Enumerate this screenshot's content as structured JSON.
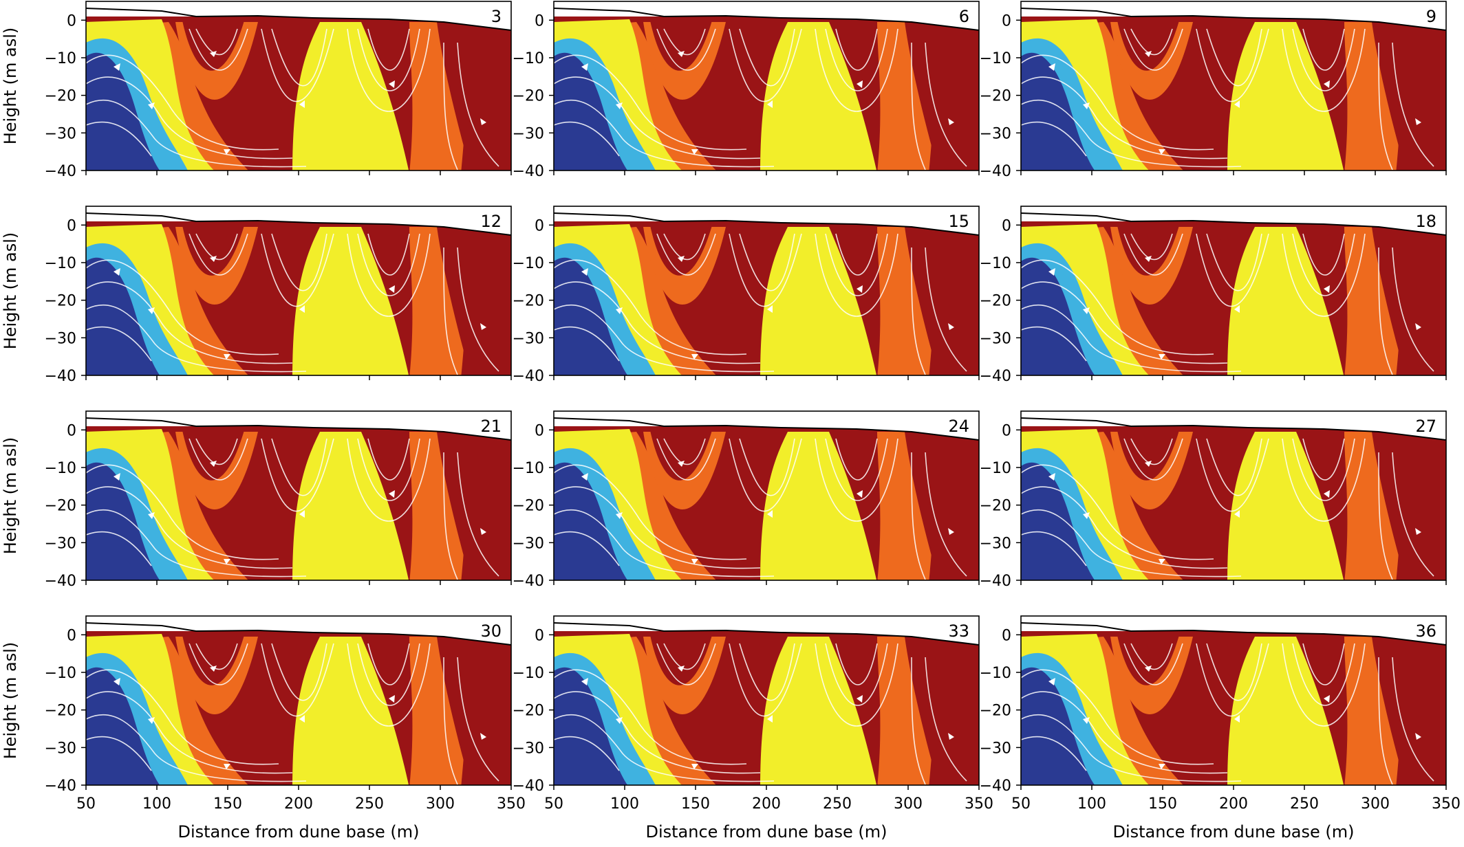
{
  "figure": {
    "x_axis_label": "Distance from dune base (m)",
    "y_axis_label": "Height (m asl)",
    "x_ticks": [
      "50",
      "100",
      "150",
      "200",
      "250",
      "300",
      "350"
    ],
    "y_ticks": [
      "0",
      "−10",
      "−20",
      "−30",
      "−40"
    ],
    "colors": {
      "low": "#2a3a92",
      "mid_low": "#3fb2e0",
      "mid": "#f2ee2a",
      "mid_high": "#ee6a1e",
      "high": "#9a1416",
      "streamline": "#ffffff",
      "surface_line": "#000000"
    }
  },
  "chart_data": [
    {
      "type": "heatmap",
      "panel_label": "3",
      "xlim": [
        50,
        350
      ],
      "ylim": [
        -40,
        5
      ],
      "xlabel": "",
      "ylabel": "Height (m asl)",
      "overlay": "streamlines"
    },
    {
      "type": "heatmap",
      "panel_label": "6",
      "xlim": [
        50,
        350
      ],
      "ylim": [
        -40,
        5
      ],
      "xlabel": "",
      "ylabel": "",
      "overlay": "streamlines"
    },
    {
      "type": "heatmap",
      "panel_label": "9",
      "xlim": [
        50,
        350
      ],
      "ylim": [
        -40,
        5
      ],
      "xlabel": "",
      "ylabel": "",
      "overlay": "streamlines"
    },
    {
      "type": "heatmap",
      "panel_label": "12",
      "xlim": [
        50,
        350
      ],
      "ylim": [
        -40,
        5
      ],
      "xlabel": "",
      "ylabel": "Height (m asl)",
      "overlay": "streamlines"
    },
    {
      "type": "heatmap",
      "panel_label": "15",
      "xlim": [
        50,
        350
      ],
      "ylim": [
        -40,
        5
      ],
      "xlabel": "",
      "ylabel": "",
      "overlay": "streamlines"
    },
    {
      "type": "heatmap",
      "panel_label": "18",
      "xlim": [
        50,
        350
      ],
      "ylim": [
        -40,
        5
      ],
      "xlabel": "",
      "ylabel": "",
      "overlay": "streamlines"
    },
    {
      "type": "heatmap",
      "panel_label": "21",
      "xlim": [
        50,
        350
      ],
      "ylim": [
        -40,
        5
      ],
      "xlabel": "",
      "ylabel": "Height (m asl)",
      "overlay": "streamlines"
    },
    {
      "type": "heatmap",
      "panel_label": "24",
      "xlim": [
        50,
        350
      ],
      "ylim": [
        -40,
        5
      ],
      "xlabel": "",
      "ylabel": "",
      "overlay": "streamlines"
    },
    {
      "type": "heatmap",
      "panel_label": "27",
      "xlim": [
        50,
        350
      ],
      "ylim": [
        -40,
        5
      ],
      "xlabel": "",
      "ylabel": "",
      "overlay": "streamlines"
    },
    {
      "type": "heatmap",
      "panel_label": "30",
      "xlim": [
        50,
        350
      ],
      "ylim": [
        -40,
        5
      ],
      "xlabel": "Distance from dune base (m)",
      "ylabel": "Height (m asl)",
      "overlay": "streamlines"
    },
    {
      "type": "heatmap",
      "panel_label": "33",
      "xlim": [
        50,
        350
      ],
      "ylim": [
        -40,
        5
      ],
      "xlabel": "Distance from dune base (m)",
      "ylabel": "",
      "overlay": "streamlines"
    },
    {
      "type": "heatmap",
      "panel_label": "36",
      "xlim": [
        50,
        350
      ],
      "ylim": [
        -40,
        5
      ],
      "xlabel": "Distance from dune base (m)",
      "ylabel": "",
      "overlay": "streamlines"
    }
  ]
}
